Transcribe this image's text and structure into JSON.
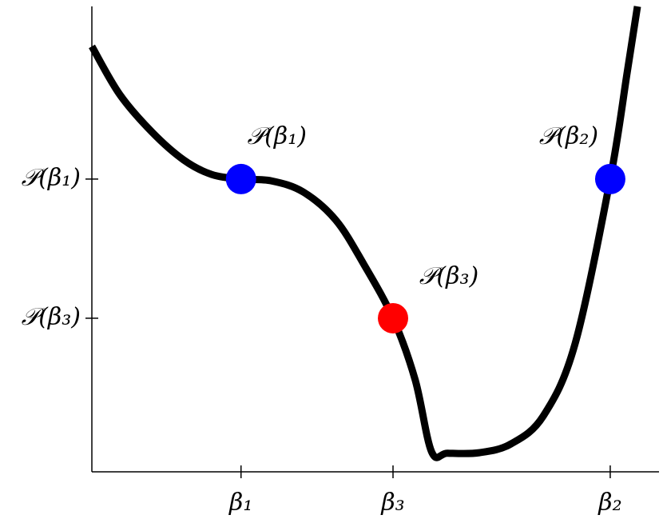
{
  "chart_data": {
    "type": "line",
    "x": [
      0,
      0.49,
      1.06,
      1.62,
      2.11,
      2.63,
      3.17,
      3.73,
      4.3,
      4.79,
      5.31,
      5.7,
      5.99,
      6.27,
      6.83,
      7.39,
      7.96,
      8.52,
      9.14,
      9.44,
      9.62
    ],
    "series": [
      {
        "color": "#000000",
        "values": [
          9.14,
          8.11,
          7.3,
          6.7,
          6.39,
          6.29,
          6.25,
          6.01,
          5.41,
          4.47,
          3.3,
          1.98,
          0.43,
          0.4,
          0.41,
          0.6,
          1.2,
          2.75,
          6.29,
          8.59,
          10.0
        ]
      }
    ],
    "points": [
      {
        "x": 2.63,
        "y": 6.29,
        "color": "#0000ff",
        "label": "𝒫(β₁)"
      },
      {
        "x": 5.31,
        "y": 3.3,
        "color": "#ff0000",
        "label": "𝒫(β₃)"
      },
      {
        "x": 9.14,
        "y": 6.29,
        "color": "#0000ff",
        "label": "𝒫(β₂)"
      }
    ],
    "xlim": [
      0,
      10
    ],
    "ylim": [
      0,
      10
    ],
    "xticks": [
      {
        "value": 2.63,
        "label": "β₁"
      },
      {
        "value": 5.31,
        "label": "β₃"
      },
      {
        "value": 9.14,
        "label": "β₂"
      }
    ],
    "yticks": [
      {
        "value": 3.3,
        "label": "𝒫(β₃)"
      },
      {
        "value": 6.29,
        "label": "𝒫(β₁)"
      }
    ]
  }
}
